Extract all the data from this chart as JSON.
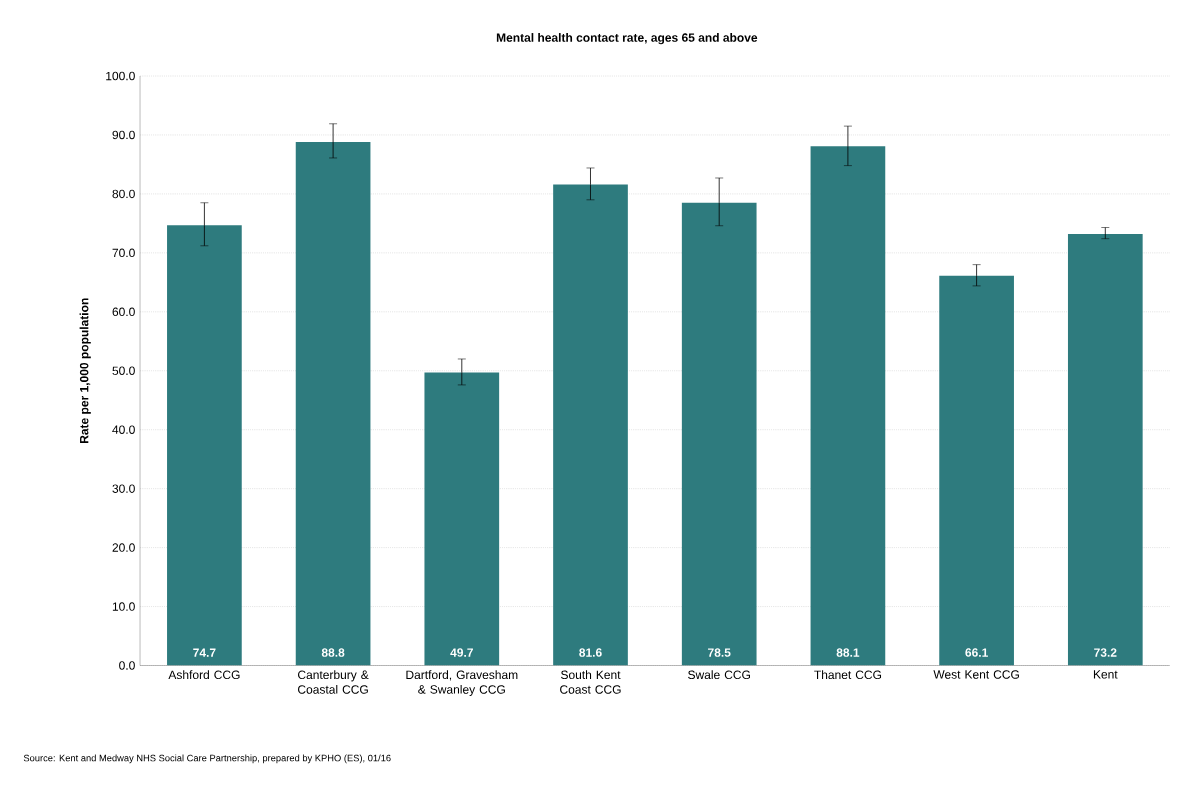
{
  "chart_data": {
    "type": "bar",
    "title": "Mental health contact rate, ages 65 and above",
    "ylabel": "Rate per 1,000 population",
    "categories": [
      "Ashford CCG",
      "Canterbury & Coastal CCG",
      "Dartford, Gravesham & Swanley CCG",
      "South Kent Coast CCG",
      "Swale CCG",
      "Thanet CCG",
      "West Kent CCG",
      "Kent"
    ],
    "values": [
      74.7,
      88.8,
      49.7,
      81.6,
      78.5,
      88.1,
      66.1,
      73.2
    ],
    "errors": [
      [
        71.2,
        78.5
      ],
      [
        86.1,
        91.9
      ],
      [
        47.6,
        52.0
      ],
      [
        79.0,
        84.4
      ],
      [
        74.6,
        82.7
      ],
      [
        84.8,
        91.5
      ],
      [
        64.4,
        68.0
      ],
      [
        72.4,
        74.3
      ]
    ],
    "color": "#2e7b7e",
    "data_labels": true,
    "ylim": [
      0,
      100
    ],
    "yticks": [
      {
        "value": 0,
        "label": "0.0"
      },
      {
        "value": 10,
        "label": "10.0"
      },
      {
        "value": 20,
        "label": "20.0"
      },
      {
        "value": 30,
        "label": "30.0"
      },
      {
        "value": 40,
        "label": "40.0"
      },
      {
        "value": 50,
        "label": "50.0"
      },
      {
        "value": 60,
        "label": "60.0"
      },
      {
        "value": 70,
        "label": "70.0"
      },
      {
        "value": 80,
        "label": "80.0"
      },
      {
        "value": 90,
        "label": "90.0"
      },
      {
        "value": 100,
        "label": "100.0"
      }
    ],
    "grid": "y",
    "annotations": [
      "Source: Kent and Medway NHS Social Care Partnership, prepared by KPHO (ES), 01/16"
    ]
  }
}
